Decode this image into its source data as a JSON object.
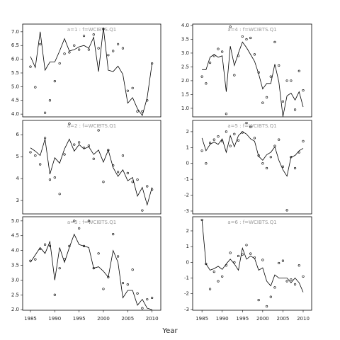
{
  "xlabel": "Year",
  "chart_data": [
    {
      "type": "scatter",
      "title": "a=1 : f=WCIBTS.Q1",
      "x": [
        1985,
        1986,
        1987,
        1988,
        1989,
        1990,
        1991,
        1992,
        1993,
        1994,
        1995,
        1996,
        1997,
        1998,
        1999,
        2000,
        2001,
        2002,
        2003,
        2004,
        2005,
        2006,
        2007,
        2008,
        2009,
        2010
      ],
      "xlim": [
        1983.4,
        2011.8
      ],
      "ylim": [
        3.9,
        7.28
      ],
      "yticks": [
        {
          "value": 4,
          "label": "4.0"
        },
        4.5,
        {
          "value": 5,
          "label": "5.0"
        },
        5.5,
        {
          "value": 6,
          "label": "6.0"
        },
        6.5,
        {
          "value": 7,
          "label": "7.0"
        }
      ],
      "series": [
        {
          "mode": "markers",
          "color": "#000000",
          "values": [
            5.73,
            4.98,
            6.55,
            4.05,
            4.5,
            5.2,
            5.85,
            6.2,
            6.25,
            6.5,
            6.35,
            6.85,
            6.35,
            6.9,
            6.4,
            7.1,
            6.15,
            6.3,
            6.55,
            6.4,
            4.85,
            4.95,
            4.1,
            4.1,
            4.5,
            5.85
          ]
        },
        {
          "mode": "line",
          "color": "#000000",
          "values": [
            6.1,
            5.7,
            7.0,
            5.6,
            5.9,
            5.9,
            6.3,
            6.75,
            6.3,
            6.35,
            6.45,
            6.5,
            6.4,
            6.8,
            5.55,
            7.15,
            5.6,
            5.55,
            5.75,
            5.45,
            4.4,
            4.6,
            4.2,
            3.95,
            4.6,
            5.85
          ]
        }
      ]
    },
    {
      "type": "scatter",
      "title": "a=4 : f=WCIBTS.Q1",
      "x": [
        1985,
        1986,
        1987,
        1988,
        1989,
        1990,
        1991,
        1992,
        1993,
        1994,
        1995,
        1996,
        1997,
        1998,
        1999,
        2000,
        2001,
        2002,
        2003,
        2004,
        2005,
        2006,
        2007,
        2008,
        2009,
        2010
      ],
      "xlim": [
        1982.7,
        2012.1
      ],
      "ylim": [
        0.69,
        4.05
      ],
      "yticks": [
        {
          "value": 1,
          "label": "1.0"
        },
        1.5,
        {
          "value": 2,
          "label": "2.0"
        },
        2.5,
        {
          "value": 3,
          "label": "3.0"
        },
        3.5,
        {
          "value": 4,
          "label": "4.0"
        }
      ],
      "series": [
        {
          "mode": "markers",
          "color": "#000000",
          "values": [
            2.15,
            1.9,
            2.65,
            2.9,
            3.15,
            3.05,
            0.8,
            3.95,
            2.2,
            2.9,
            3.6,
            3.5,
            3.55,
            2.95,
            2.3,
            1.2,
            1.4,
            2.15,
            3.4,
            2.55,
            1.25,
            2.0,
            2.0,
            0.95,
            2.35,
            1.65
          ]
        },
        {
          "mode": "line",
          "color": "#000000",
          "values": [
            2.4,
            2.4,
            2.85,
            2.95,
            2.85,
            2.9,
            1.6,
            3.25,
            2.55,
            3.0,
            3.4,
            3.2,
            2.95,
            2.7,
            2.25,
            1.7,
            1.9,
            1.9,
            2.6,
            1.95,
            0.7,
            1.45,
            1.55,
            1.3,
            1.6,
            1.05
          ]
        }
      ]
    },
    {
      "type": "scatter",
      "title": "a=2 : f=WCIBTS.Q1",
      "x": [
        1985,
        1986,
        1987,
        1988,
        1989,
        1990,
        1991,
        1992,
        1993,
        1994,
        1995,
        1996,
        1997,
        1998,
        1999,
        2000,
        2001,
        2002,
        2003,
        2004,
        2005,
        2006,
        2007,
        2008,
        2009,
        2010
      ],
      "xlim": [
        1983.4,
        2011.8
      ],
      "ylim": [
        2.39,
        6.65
      ],
      "yticks": [
        3,
        4,
        5,
        6
      ],
      "series": [
        {
          "mode": "markers",
          "color": "#000000",
          "values": [
            5.2,
            5.05,
            4.65,
            5.85,
            3.95,
            4.05,
            3.3,
            5.1,
            6.5,
            5.55,
            5.65,
            5.4,
            5.5,
            4.9,
            6.2,
            3.85,
            5.3,
            4.6,
            4.3,
            5.05,
            4.25,
            3.85,
            3.95,
            2.55,
            3.65,
            3.5
          ]
        },
        {
          "mode": "line",
          "color": "#000000",
          "values": [
            5.4,
            5.25,
            5.05,
            5.8,
            4.2,
            4.95,
            4.7,
            5.35,
            5.8,
            5.25,
            5.55,
            5.35,
            5.45,
            5.1,
            5.3,
            4.75,
            5.3,
            4.5,
            4.1,
            4.4,
            3.9,
            4.05,
            3.2,
            3.6,
            2.8,
            3.6
          ]
        }
      ]
    },
    {
      "type": "scatter",
      "title": "a=5 : f=WCIBTS.Q1",
      "x": [
        1985,
        1986,
        1987,
        1988,
        1989,
        1990,
        1991,
        1992,
        1993,
        1994,
        1995,
        1996,
        1997,
        1998,
        1999,
        2000,
        2001,
        2002,
        2003,
        2004,
        2005,
        2006,
        2007,
        2008,
        2009,
        2010
      ],
      "xlim": [
        1982.7,
        2012.1
      ],
      "ylim": [
        -3.18,
        2.71
      ],
      "yticks": [
        -3,
        -2,
        -1,
        0,
        1,
        2
      ],
      "series": [
        {
          "mode": "markers",
          "color": "#000000",
          "values": [
            0.8,
            0.0,
            1.3,
            1.5,
            1.7,
            1.4,
            2.0,
            1.1,
            1.85,
            1.45,
            1.95,
            2.55,
            2.3,
            1.6,
            0.5,
            0.0,
            -0.3,
            0.4,
            1.1,
            1.5,
            -0.2,
            -2.95,
            0.4,
            -0.3,
            0.7,
            1.4
          ]
        },
        {
          "mode": "line",
          "color": "#000000",
          "values": [
            1.6,
            0.8,
            1.2,
            1.35,
            1.2,
            1.55,
            0.7,
            1.75,
            1.05,
            1.75,
            2.0,
            1.85,
            1.55,
            1.4,
            0.45,
            0.2,
            0.55,
            0.7,
            1.05,
            0.2,
            -0.4,
            -0.8,
            0.4,
            0.5,
            0.8,
            0.95
          ]
        }
      ]
    },
    {
      "type": "scatter",
      "title": "a=3 : f=WCIBTS.Q1",
      "x": [
        1985,
        1986,
        1987,
        1988,
        1989,
        1990,
        1991,
        1992,
        1993,
        1994,
        1995,
        1996,
        1997,
        1998,
        1999,
        2000,
        2001,
        2002,
        2003,
        2004,
        2005,
        2006,
        2007,
        2008,
        2009,
        2010
      ],
      "xlim": [
        1983.4,
        2011.8
      ],
      "ylim": [
        1.98,
        5.14
      ],
      "xticks": [
        1985,
        1990,
        1995,
        2000,
        2005,
        2010
      ],
      "yticks": [
        {
          "value": 2,
          "label": "2.0"
        },
        2.5,
        {
          "value": 3,
          "label": "3.0"
        },
        3.5,
        {
          "value": 4,
          "label": "4.0"
        },
        4.5,
        {
          "value": 5,
          "label": "5.0"
        }
      ],
      "series": [
        {
          "mode": "markers",
          "color": "#000000",
          "values": [
            3.65,
            3.7,
            4.05,
            4.2,
            4.15,
            2.5,
            3.4,
            3.7,
            4.15,
            5.0,
            4.75,
            4.15,
            5.0,
            3.4,
            3.9,
            2.7,
            3.1,
            4.55,
            3.8,
            2.9,
            2.85,
            3.35,
            2.55,
            2.05,
            2.35,
            2.4
          ]
        },
        {
          "mode": "line",
          "color": "#000000",
          "values": [
            3.6,
            3.85,
            4.1,
            3.9,
            4.3,
            3.0,
            4.1,
            3.6,
            4.1,
            4.55,
            4.2,
            4.15,
            4.1,
            3.4,
            3.45,
            3.3,
            3.1,
            4.0,
            3.6,
            2.4,
            2.65,
            2.65,
            2.15,
            2.35,
            2.05,
            2.0
          ]
        }
      ]
    },
    {
      "type": "scatter",
      "title": "a=6 : f=WCIBTS.Q1",
      "x": [
        1985,
        1986,
        1987,
        1988,
        1989,
        1990,
        1991,
        1992,
        1993,
        1994,
        1995,
        1996,
        1997,
        1998,
        1999,
        2000,
        2001,
        2002,
        2003,
        2004,
        2005,
        2006,
        2007,
        2008,
        2009,
        2010
      ],
      "xlim": [
        1982.7,
        2012.1
      ],
      "ylim": [
        -3.05,
        2.9
      ],
      "xticks": [
        1985,
        1990,
        1995,
        2000,
        2005,
        2010
      ],
      "yticks": [
        -3,
        -2,
        -1,
        0,
        1,
        2
      ],
      "series": [
        {
          "mode": "markers",
          "color": "#000000",
          "values": [
            2.7,
            -0.1,
            -1.7,
            -0.6,
            -1.2,
            -0.9,
            -0.2,
            0.6,
            0.0,
            0.4,
            0.5,
            1.1,
            0.55,
            0.3,
            -2.4,
            0.15,
            -2.8,
            -2.2,
            -1.6,
            -0.05,
            0.1,
            -1.2,
            -1.1,
            -1.4,
            -0.2,
            -0.9
          ]
        },
        {
          "mode": "line",
          "color": "#000000",
          "values": [
            2.7,
            -0.1,
            -0.5,
            -0.4,
            -0.25,
            -0.45,
            -0.1,
            0.2,
            -0.1,
            -0.5,
            0.9,
            0.2,
            0.4,
            0.25,
            -0.5,
            -0.35,
            -1.2,
            -1.5,
            -0.8,
            -1.0,
            -1.0,
            -1.0,
            -1.3,
            -1.0,
            -1.3,
            -1.9
          ]
        }
      ]
    }
  ]
}
